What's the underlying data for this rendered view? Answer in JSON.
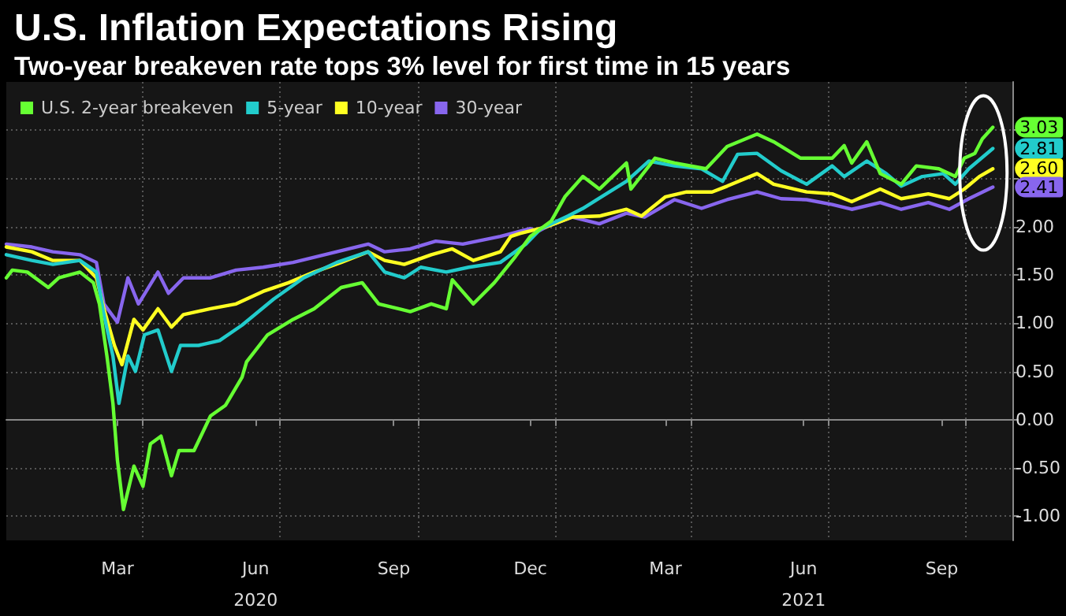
{
  "chart_data": {
    "type": "line",
    "title": "U.S. Inflation Expectations Rising",
    "subtitle": "Two-year breakeven rate tops 3% level for first time in 15 years",
    "xlim": [
      "2020-01-01",
      "2021-11-01"
    ],
    "xticks": [
      {
        "value": "2020-03-15",
        "label": "Mar"
      },
      {
        "value": "2020-06-15",
        "label": "Jun\n2020"
      },
      {
        "value": "2020-09-15",
        "label": "Sep"
      },
      {
        "value": "2020-12-15",
        "label": "Dec"
      },
      {
        "value": "2021-03-15",
        "label": "Mar"
      },
      {
        "value": "2021-06-15",
        "label": "Jun\n2021"
      },
      {
        "value": "2021-09-15",
        "label": "Sep"
      },
      {
        "value": "2020-04-01",
        "label": null
      },
      {
        "value": "2020-07-01",
        "label": null
      },
      {
        "value": "2020-10-01",
        "label": null
      },
      {
        "value": "2021-01-01",
        "label": null
      },
      {
        "value": "2021-04-01",
        "label": null
      },
      {
        "value": "2021-07-01",
        "label": null
      },
      {
        "value": "2021-10-01",
        "label": null
      }
    ],
    "ylim": [
      -1.25,
      3.5
    ],
    "yticks": [
      {
        "value": -1,
        "label": "-1.00"
      },
      {
        "value": -0.5,
        "label": "-0.50"
      },
      {
        "value": 0,
        "label": "0.00"
      },
      {
        "value": 0.5,
        "label": "0.50"
      },
      {
        "value": 1,
        "label": "1.00"
      },
      {
        "value": 1.5,
        "label": "1.50"
      },
      {
        "value": 2,
        "label": "2.00"
      },
      {
        "value": 2.5,
        "label": null
      },
      {
        "value": 3,
        "label": null
      }
    ],
    "grid": true,
    "legend": "top left",
    "marker": "none",
    "line_style": "solid",
    "series": [
      {
        "name": "U.S. 2-year breakeven",
        "color": "#66ff33",
        "x": [
          "2020-01-01",
          "2020-01-05",
          "2020-01-15",
          "2020-01-29",
          "2020-02-05",
          "2020-02-19",
          "2020-02-28",
          "2020-03-03",
          "2020-03-08",
          "2020-03-12",
          "2020-03-15",
          "2020-03-19",
          "2020-03-26",
          "2020-04-01",
          "2020-04-06",
          "2020-04-13",
          "2020-04-20",
          "2020-04-25",
          "2020-05-05",
          "2020-05-16",
          "2020-05-26",
          "2020-06-06",
          "2020-06-09",
          "2020-06-23",
          "2020-07-10",
          "2020-07-24",
          "2020-08-11",
          "2020-08-25",
          "2020-09-05",
          "2020-09-26",
          "2020-10-10",
          "2020-10-20",
          "2020-10-24",
          "2020-11-07",
          "2020-11-21",
          "2020-12-05",
          "2020-12-15",
          "2020-12-29",
          "2021-01-07",
          "2021-01-19",
          "2021-01-30",
          "2021-02-17",
          "2021-02-20",
          "2021-03-08",
          "2021-03-21",
          "2021-04-11",
          "2021-04-25",
          "2021-05-15",
          "2021-05-26",
          "2021-06-13",
          "2021-07-04",
          "2021-07-12",
          "2021-07-17",
          "2021-07-27",
          "2021-08-05",
          "2021-08-19",
          "2021-08-29",
          "2021-09-13",
          "2021-09-24",
          "2021-09-30",
          "2021-10-07",
          "2021-10-12",
          "2021-10-19"
        ],
        "values": [
          1.47,
          1.55,
          1.53,
          1.37,
          1.47,
          1.53,
          1.42,
          1.2,
          0.66,
          0.17,
          -0.42,
          -0.93,
          -0.48,
          -0.69,
          -0.25,
          -0.17,
          -0.58,
          -0.32,
          -0.32,
          0.04,
          0.15,
          0.44,
          0.6,
          0.88,
          1.04,
          1.15,
          1.37,
          1.42,
          1.2,
          1.12,
          1.2,
          1.15,
          1.45,
          1.2,
          1.42,
          1.69,
          1.9,
          2.06,
          2.31,
          2.52,
          2.39,
          2.66,
          2.39,
          2.71,
          2.66,
          2.6,
          2.83,
          2.96,
          2.88,
          2.71,
          2.71,
          2.84,
          2.66,
          2.88,
          2.55,
          2.44,
          2.63,
          2.6,
          2.52,
          2.71,
          2.76,
          2.91,
          3.03
        ],
        "value_labels": [
          null,
          null,
          null,
          null,
          null,
          null,
          null,
          null,
          null,
          null,
          null,
          null,
          null,
          null,
          null,
          null,
          null,
          null,
          null,
          null,
          null,
          null,
          null,
          null,
          null,
          null,
          null,
          null,
          null,
          null,
          null,
          null,
          null,
          null,
          null,
          null,
          null,
          null,
          null,
          null,
          null,
          null,
          null,
          null,
          null,
          null,
          null,
          null,
          null,
          null,
          null,
          null,
          null,
          null,
          null,
          null,
          null,
          null,
          null,
          null,
          null,
          null,
          "3.03"
        ]
      },
      {
        "name": "5-year",
        "color": "#22cccc",
        "x": [
          "2020-01-01",
          "2020-01-18",
          "2020-02-01",
          "2020-02-19",
          "2020-03-01",
          "2020-03-06",
          "2020-03-12",
          "2020-03-16",
          "2020-03-22",
          "2020-03-27",
          "2020-04-02",
          "2020-04-11",
          "2020-04-20",
          "2020-04-26",
          "2020-05-08",
          "2020-05-22",
          "2020-06-06",
          "2020-06-27",
          "2020-07-17",
          "2020-08-08",
          "2020-08-29",
          "2020-09-09",
          "2020-09-22",
          "2020-10-03",
          "2020-10-20",
          "2020-11-04",
          "2020-11-25",
          "2020-12-12",
          "2020-12-22",
          "2021-01-09",
          "2021-01-19",
          "2021-02-17",
          "2021-03-04",
          "2021-03-21",
          "2021-04-08",
          "2021-04-22",
          "2021-05-02",
          "2021-05-15",
          "2021-05-31",
          "2021-06-17",
          "2021-07-04",
          "2021-07-12",
          "2021-07-27",
          "2021-08-09",
          "2021-08-19",
          "2021-09-02",
          "2021-09-16",
          "2021-09-24",
          "2021-10-03",
          "2021-10-19"
        ],
        "values": [
          1.71,
          1.65,
          1.61,
          1.65,
          1.53,
          1.09,
          0.66,
          0.17,
          0.66,
          0.5,
          0.88,
          0.93,
          0.5,
          0.77,
          0.77,
          0.82,
          0.98,
          1.25,
          1.47,
          1.63,
          1.74,
          1.53,
          1.47,
          1.58,
          1.53,
          1.58,
          1.63,
          1.82,
          1.98,
          2.11,
          2.19,
          2.47,
          2.68,
          2.63,
          2.6,
          2.47,
          2.75,
          2.76,
          2.58,
          2.44,
          2.63,
          2.52,
          2.68,
          2.55,
          2.42,
          2.52,
          2.55,
          2.44,
          2.6,
          2.81
        ],
        "value_labels": [
          null,
          null,
          null,
          null,
          null,
          null,
          null,
          null,
          null,
          null,
          null,
          null,
          null,
          null,
          null,
          null,
          null,
          null,
          null,
          null,
          null,
          null,
          null,
          null,
          null,
          null,
          null,
          null,
          null,
          null,
          null,
          null,
          null,
          null,
          null,
          null,
          null,
          null,
          null,
          null,
          null,
          null,
          null,
          null,
          null,
          null,
          null,
          null,
          null,
          "2.81"
        ]
      },
      {
        "name": "10-year",
        "color": "#ffff22",
        "x": [
          "2020-01-01",
          "2020-01-18",
          "2020-02-01",
          "2020-02-19",
          "2020-03-01",
          "2020-03-06",
          "2020-03-13",
          "2020-03-18",
          "2020-03-26",
          "2020-04-01",
          "2020-04-11",
          "2020-04-20",
          "2020-04-28",
          "2020-05-16",
          "2020-06-02",
          "2020-06-20",
          "2020-07-07",
          "2020-07-24",
          "2020-08-11",
          "2020-08-29",
          "2020-09-09",
          "2020-09-22",
          "2020-10-10",
          "2020-10-24",
          "2020-11-07",
          "2020-11-25",
          "2020-12-02",
          "2020-12-08",
          "2020-12-26",
          "2021-01-12",
          "2021-01-30",
          "2021-02-17",
          "2021-02-27",
          "2021-03-15",
          "2021-03-29",
          "2021-04-15",
          "2021-04-25",
          "2021-05-15",
          "2021-05-26",
          "2021-06-17",
          "2021-07-04",
          "2021-07-17",
          "2021-08-05",
          "2021-08-19",
          "2021-09-06",
          "2021-09-20",
          "2021-09-30",
          "2021-10-10",
          "2021-10-19"
        ],
        "values": [
          1.79,
          1.74,
          1.65,
          1.65,
          1.47,
          1.15,
          0.77,
          0.57,
          1.04,
          0.93,
          1.15,
          0.96,
          1.09,
          1.15,
          1.2,
          1.33,
          1.42,
          1.53,
          1.63,
          1.74,
          1.65,
          1.61,
          1.71,
          1.77,
          1.65,
          1.74,
          1.9,
          1.93,
          2.0,
          2.1,
          2.11,
          2.18,
          2.11,
          2.31,
          2.36,
          2.36,
          2.42,
          2.55,
          2.44,
          2.36,
          2.34,
          2.26,
          2.39,
          2.29,
          2.34,
          2.29,
          2.39,
          2.52,
          2.6
        ],
        "value_labels": [
          null,
          null,
          null,
          null,
          null,
          null,
          null,
          null,
          null,
          null,
          null,
          null,
          null,
          null,
          null,
          null,
          null,
          null,
          null,
          null,
          null,
          null,
          null,
          null,
          null,
          null,
          null,
          null,
          null,
          null,
          null,
          null,
          null,
          null,
          null,
          null,
          null,
          null,
          null,
          null,
          null,
          null,
          null,
          null,
          null,
          null,
          null,
          null,
          "2.60"
        ]
      },
      {
        "name": "30-year",
        "color": "#8866ee",
        "x": [
          "2020-01-01",
          "2020-01-18",
          "2020-02-01",
          "2020-02-19",
          "2020-03-01",
          "2020-03-06",
          "2020-03-15",
          "2020-03-22",
          "2020-03-29",
          "2020-04-11",
          "2020-04-18",
          "2020-04-28",
          "2020-05-16",
          "2020-06-02",
          "2020-06-20",
          "2020-07-10",
          "2020-08-08",
          "2020-08-29",
          "2020-09-09",
          "2020-09-26",
          "2020-10-13",
          "2020-10-31",
          "2020-11-25",
          "2020-12-15",
          "2020-12-20",
          "2020-12-26",
          "2021-01-12",
          "2021-01-30",
          "2021-02-17",
          "2021-03-01",
          "2021-03-21",
          "2021-04-08",
          "2021-04-25",
          "2021-05-15",
          "2021-05-31",
          "2021-06-17",
          "2021-07-04",
          "2021-07-17",
          "2021-08-05",
          "2021-08-19",
          "2021-09-06",
          "2021-09-20",
          "2021-10-03",
          "2021-10-19"
        ],
        "values": [
          1.82,
          1.79,
          1.74,
          1.71,
          1.63,
          1.2,
          1.01,
          1.47,
          1.2,
          1.53,
          1.31,
          1.47,
          1.47,
          1.55,
          1.58,
          1.63,
          1.74,
          1.82,
          1.74,
          1.77,
          1.85,
          1.82,
          1.9,
          1.98,
          1.95,
          2.0,
          2.1,
          2.03,
          2.14,
          2.1,
          2.28,
          2.19,
          2.28,
          2.36,
          2.29,
          2.28,
          2.23,
          2.18,
          2.25,
          2.18,
          2.25,
          2.18,
          2.29,
          2.41
        ],
        "value_labels": [
          null,
          null,
          null,
          null,
          null,
          null,
          null,
          null,
          null,
          null,
          null,
          null,
          null,
          null,
          null,
          null,
          null,
          null,
          null,
          null,
          null,
          null,
          null,
          null,
          null,
          null,
          null,
          null,
          null,
          null,
          null,
          null,
          null,
          null,
          null,
          null,
          null,
          null,
          null,
          null,
          null,
          null,
          null,
          "2.41"
        ]
      }
    ]
  }
}
